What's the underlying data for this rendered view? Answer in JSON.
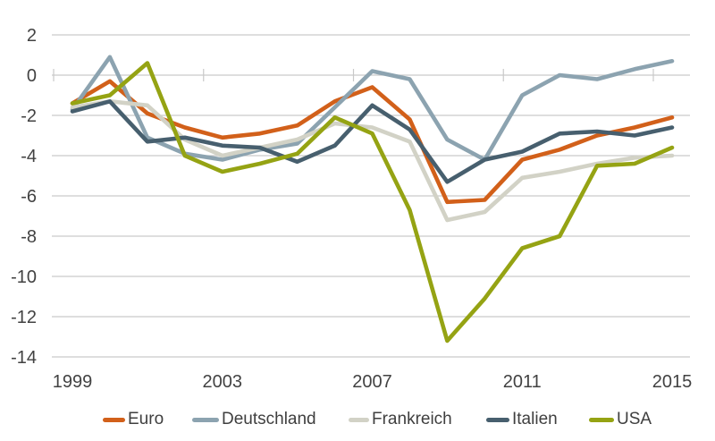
{
  "chart_data": {
    "type": "line",
    "x": [
      1999,
      2000,
      2001,
      2002,
      2003,
      2004,
      2005,
      2006,
      2007,
      2008,
      2009,
      2010,
      2011,
      2012,
      2013,
      2014,
      2015
    ],
    "series": [
      {
        "name": "Euro",
        "color": "#D2601A",
        "values": [
          -1.4,
          -0.3,
          -1.9,
          -2.6,
          -3.1,
          -2.9,
          -2.5,
          -1.3,
          -0.6,
          -2.2,
          -6.3,
          -6.2,
          -4.2,
          -3.7,
          -3.0,
          -2.6,
          -2.1
        ]
      },
      {
        "name": "Deutschland",
        "color": "#8CA3B0",
        "values": [
          -1.7,
          0.9,
          -3.1,
          -3.9,
          -4.2,
          -3.7,
          -3.4,
          -1.6,
          0.2,
          -0.2,
          -3.2,
          -4.2,
          -1.0,
          0.0,
          -0.2,
          0.3,
          0.7
        ]
      },
      {
        "name": "Frankreich",
        "color": "#D2D2C6",
        "values": [
          -1.6,
          -1.3,
          -1.5,
          -3.2,
          -4.0,
          -3.6,
          -3.2,
          -2.4,
          -2.6,
          -3.3,
          -7.2,
          -6.8,
          -5.1,
          -4.8,
          -4.4,
          -4.1,
          -4.0
        ]
      },
      {
        "name": "Italien",
        "color": "#475F6E",
        "values": [
          -1.8,
          -1.3,
          -3.3,
          -3.1,
          -3.5,
          -3.6,
          -4.3,
          -3.5,
          -1.5,
          -2.7,
          -5.3,
          -4.2,
          -3.8,
          -2.9,
          -2.8,
          -3.0,
          -2.6
        ]
      },
      {
        "name": "USA",
        "color": "#95A313",
        "values": [
          -1.4,
          -1.0,
          0.6,
          -4.0,
          -4.8,
          -4.4,
          -3.9,
          -2.1,
          -2.9,
          -6.7,
          -13.2,
          -11.1,
          -8.6,
          -8.0,
          -4.5,
          -4.4,
          -3.6
        ]
      }
    ],
    "y_ticks": [
      2,
      0,
      -2,
      -4,
      -6,
      -8,
      -10,
      -12,
      -14
    ],
    "x_tick_labels": [
      "1999",
      "2003",
      "2007",
      "2011",
      "2015"
    ],
    "x_tick_years": [
      1999,
      2003,
      2007,
      2011,
      2015
    ],
    "ylim": [
      -14.8,
      2.9
    ],
    "title": "",
    "xlabel": "",
    "ylabel": "",
    "grid": true,
    "legend_position": "bottom",
    "colors": {
      "grid": "#C9C9C9",
      "axis_text": "#424242",
      "legend_text": "#3F3F3F",
      "background": "#FFFFFF"
    }
  }
}
